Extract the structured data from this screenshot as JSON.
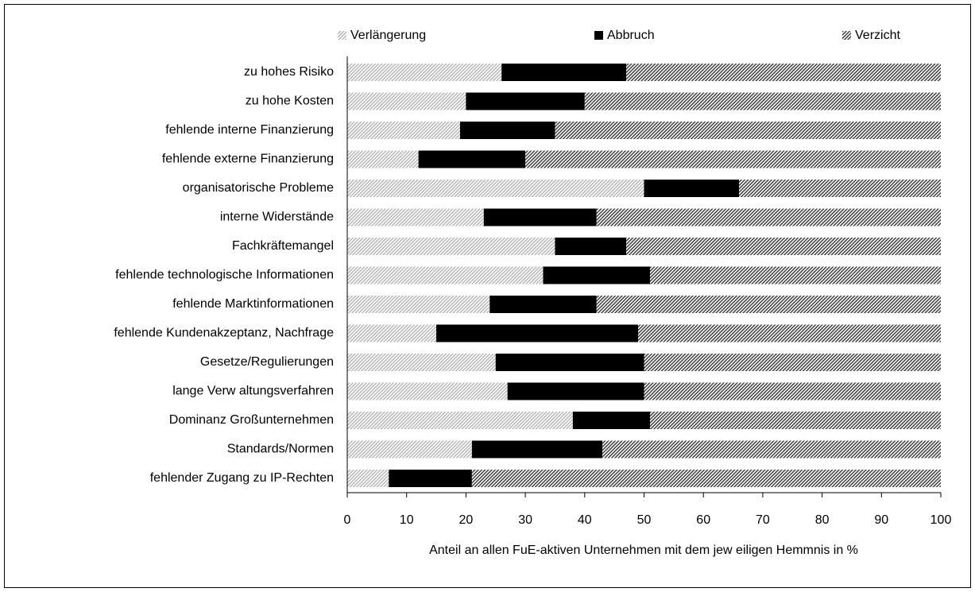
{
  "chart_data": {
    "type": "stacked_barh",
    "xlabel": "Anteil an allen FuE-aktiven Unternehmen mit dem jew eiligen Hemmnis in %",
    "categories": [
      "zu hohes Risiko",
      "zu hohe Kosten",
      "fehlende interne Finanzierung",
      "fehlende externe Finanzierung",
      "organisatorische Probleme",
      "interne Widerstände",
      "Fachkräftemangel",
      "fehlende technologische Informationen",
      "fehlende Marktinformationen",
      "fehlende Kundenakzeptanz, Nachfrage",
      "Gesetze/Regulierungen",
      "lange Verw altungsverfahren",
      "Dominanz Großunternehmen",
      "Standards/Normen",
      "fehlender Zugang zu IP-Rechten"
    ],
    "series": [
      {
        "name": "Verlängerung",
        "color": "#a6a6a6",
        "values": [
          26,
          20,
          19,
          12,
          50,
          23,
          35,
          33,
          24,
          15,
          25,
          27,
          38,
          21,
          7
        ]
      },
      {
        "name": "Abbruch",
        "color": "#000000",
        "values": [
          21,
          20,
          16,
          18,
          16,
          19,
          12,
          18,
          18,
          34,
          25,
          23,
          13,
          22,
          14
        ]
      },
      {
        "name": "Verzicht",
        "color": "#404040",
        "values": [
          53,
          60,
          65,
          70,
          34,
          58,
          53,
          49,
          58,
          51,
          50,
          50,
          49,
          57,
          79
        ]
      }
    ],
    "xlim": [
      0,
      100
    ],
    "xticks": [
      0,
      10,
      20,
      30,
      40,
      50,
      60,
      70,
      80,
      90,
      100
    ]
  }
}
